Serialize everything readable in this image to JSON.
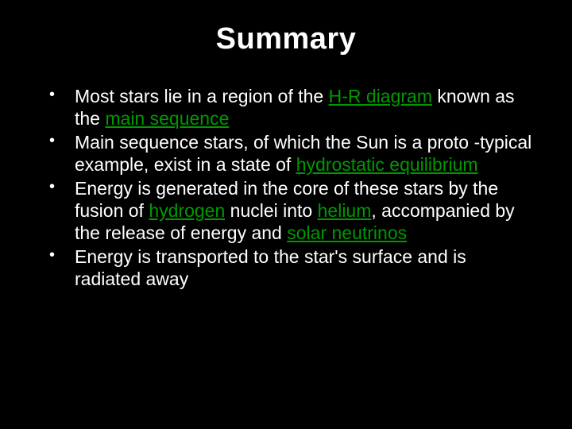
{
  "title": "Summary",
  "background_color": "#000000",
  "text_color": "#ffffff",
  "highlight_color": "#009900",
  "title_fontsize": 38,
  "body_fontsize": 23,
  "bullets": [
    {
      "segments": [
        {
          "text": "Most stars lie in a region of the ",
          "hl": false
        },
        {
          "text": "H-R diagram",
          "hl": true
        },
        {
          "text": " known as the ",
          "hl": false
        },
        {
          "text": "main sequence",
          "hl": true
        }
      ]
    },
    {
      "segments": [
        {
          "text": "Main sequence stars, of which the Sun is a proto -typical example, exist in a state of ",
          "hl": false
        },
        {
          "text": "hydrostatic equilibrium",
          "hl": true
        }
      ]
    },
    {
      "segments": [
        {
          "text": "Energy is generated in the core of these stars by the fusion of ",
          "hl": false
        },
        {
          "text": "hydrogen",
          "hl": true
        },
        {
          "text": " nuclei into ",
          "hl": false
        },
        {
          "text": "helium",
          "hl": true
        },
        {
          "text": ", accompanied by the release of energy and ",
          "hl": false
        },
        {
          "text": "solar neutrinos",
          "hl": true
        }
      ]
    },
    {
      "segments": [
        {
          "text": "Energy is transported to the star's surface and is radiated away",
          "hl": false
        }
      ]
    }
  ]
}
